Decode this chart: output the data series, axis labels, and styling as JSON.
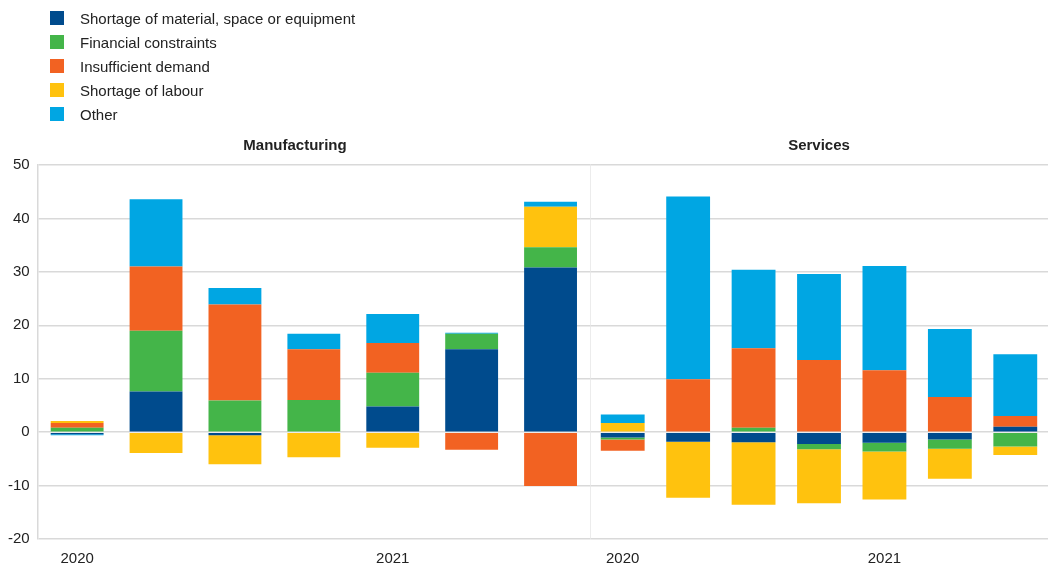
{
  "chart_data": [
    {
      "type": "bar",
      "title": "Manufacturing",
      "stacked": true,
      "legend": "top left",
      "grid": "y",
      "categories": [
        "2020",
        null,
        null,
        null,
        "2021",
        null,
        null
      ],
      "ylim": [
        -20,
        50
      ],
      "yticks": [
        -20,
        -10,
        0,
        10,
        20,
        30,
        40,
        50
      ],
      "series": [
        {
          "name": "Shortage of material, space or equipment",
          "color": "#004b8d",
          "values": [
            -0.4,
            7.6,
            -0.6,
            null,
            4.8,
            15.5,
            30.8
          ]
        },
        {
          "name": "Financial constraints",
          "color": "#44b549",
          "values": [
            0.8,
            11.4,
            5.9,
            6.0,
            6.3,
            2.9,
            3.8
          ]
        },
        {
          "name": "Insufficient demand",
          "color": "#f26222",
          "values": [
            0.9,
            12.0,
            18.0,
            9.5,
            5.6,
            -3.3,
            -10.1
          ]
        },
        {
          "name": "Shortage of labour",
          "color": "#ffc20e",
          "values": [
            0.4,
            -3.9,
            -5.4,
            -4.7,
            -2.9,
            0,
            7.6
          ]
        },
        {
          "name": "Other",
          "color": "#00a6e3",
          "values": [
            -0.2,
            12.6,
            3.1,
            2.9,
            5.4,
            0.2,
            0.9
          ]
        }
      ]
    },
    {
      "type": "bar",
      "title": "Services",
      "stacked": true,
      "grid": "y",
      "tick_labels": "x",
      "categories": [
        "2020",
        null,
        null,
        null,
        "2021",
        null,
        null
      ],
      "ylim": [
        -20,
        50
      ],
      "yticks": [
        -20,
        -10,
        0,
        10,
        20,
        30,
        40,
        50
      ],
      "series": [
        {
          "color": "#004b8d",
          "values": [
            -1.0,
            -1.8,
            -1.9,
            -2.2,
            -2.0,
            -1.4,
            1.0
          ]
        },
        {
          "color": "#44b549",
          "values": [
            -0.4,
            null,
            0.8,
            -1.0,
            -1.6,
            -1.7,
            -2.7
          ]
        },
        {
          "color": "#f26222",
          "values": [
            -2.1,
            9.9,
            14.9,
            13.5,
            11.6,
            6.6,
            2.0
          ]
        },
        {
          "color": "#ffc20e",
          "values": [
            1.7,
            -10.5,
            -11.7,
            -10.1,
            -9.0,
            -5.6,
            -1.6
          ]
        },
        {
          "color": "#00a6e3",
          "values": [
            1.6,
            34.2,
            14.7,
            16.1,
            19.5,
            12.7,
            11.6
          ]
        }
      ]
    }
  ]
}
